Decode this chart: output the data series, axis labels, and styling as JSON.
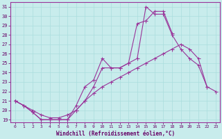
{
  "xlabel": "Windchill (Refroidissement éolien,°C)",
  "background_color": "#c8ecec",
  "grid_color": "#aadddd",
  "line_color": "#993399",
  "xlim_min": -0.5,
  "xlim_max": 23.5,
  "ylim_min": 18.7,
  "ylim_max": 31.5,
  "xticks": [
    0,
    1,
    2,
    3,
    4,
    5,
    6,
    7,
    8,
    9,
    10,
    11,
    12,
    13,
    14,
    15,
    16,
    17,
    18,
    19,
    20,
    21,
    22,
    23
  ],
  "yticks": [
    19,
    20,
    21,
    22,
    23,
    24,
    25,
    26,
    27,
    28,
    29,
    30,
    31
  ],
  "curve1_x": [
    0,
    1,
    2,
    3,
    4,
    5,
    6,
    7,
    8,
    9,
    10,
    11,
    12,
    13,
    14,
    15,
    16,
    17,
    18,
    19,
    20,
    21,
    22
  ],
  "curve1_y": [
    21.0,
    20.5,
    19.8,
    19.0,
    19.0,
    19.0,
    19.0,
    20.5,
    22.5,
    23.2,
    25.5,
    24.5,
    24.5,
    25.0,
    25.5,
    31.0,
    30.2,
    30.2,
    28.0,
    26.5,
    25.5,
    24.8,
    22.5
  ],
  "curve2_x": [
    0,
    1,
    2,
    3,
    4,
    5,
    6,
    7,
    8,
    9,
    10,
    11,
    12,
    13,
    14,
    15,
    16,
    17,
    18
  ],
  "curve2_y": [
    21.0,
    20.5,
    19.8,
    19.0,
    19.0,
    19.0,
    19.0,
    20.0,
    21.0,
    22.5,
    24.5,
    24.5,
    24.5,
    25.0,
    29.2,
    29.5,
    30.5,
    30.5,
    28.2
  ],
  "curve3_x": [
    0,
    1,
    2,
    3,
    4,
    5,
    6,
    7,
    8,
    9,
    10,
    11,
    12,
    13,
    14,
    15,
    16,
    17,
    18,
    19,
    20,
    21,
    22,
    23
  ],
  "curve3_y": [
    21.0,
    20.5,
    20.0,
    19.5,
    19.2,
    19.2,
    19.5,
    20.0,
    21.0,
    21.8,
    22.5,
    23.0,
    23.5,
    24.0,
    24.5,
    25.0,
    25.5,
    26.0,
    26.5,
    27.0,
    26.5,
    25.5,
    22.5,
    22.0
  ]
}
